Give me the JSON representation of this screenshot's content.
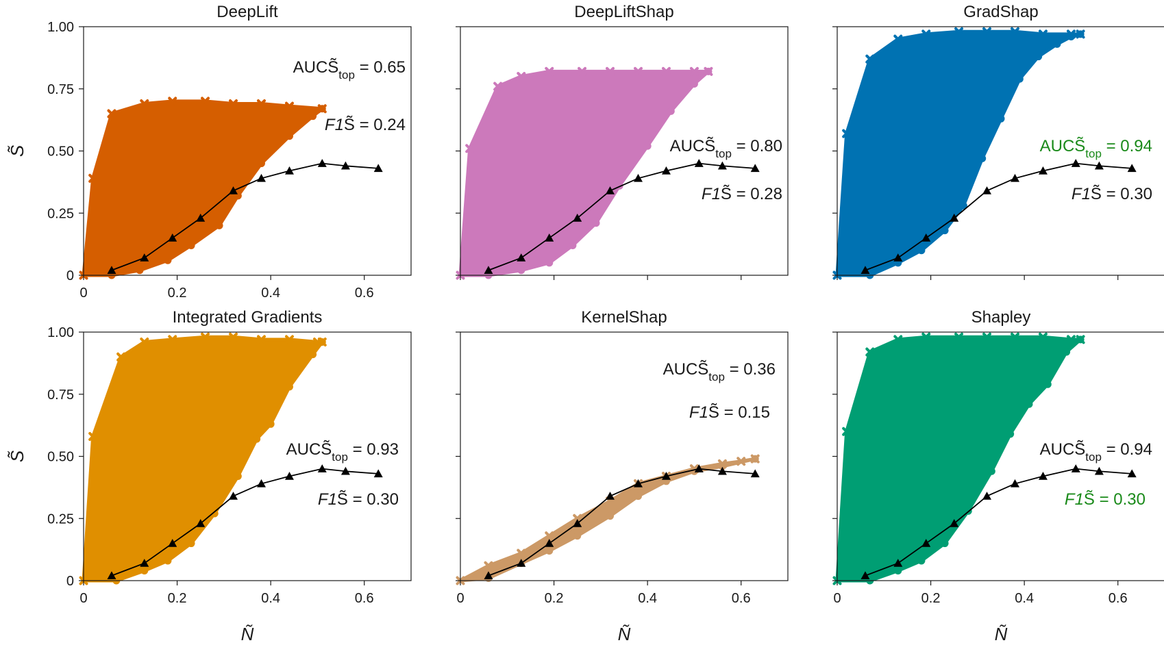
{
  "figure": {
    "xlabel": "Ñ",
    "ylabel": "S̃",
    "reference_color": "#000000"
  },
  "chart_data": [
    {
      "type": "area",
      "title": "DeepLift",
      "color": "#d55e00",
      "xlim": [
        0,
        0.7
      ],
      "ylim": [
        0,
        1.0
      ],
      "xticks": [
        "0",
        "0.2",
        "0.4",
        "0.6"
      ],
      "yticks": [
        "0",
        "0.25",
        "0.50",
        "0.75",
        "1.00"
      ],
      "series": [
        {
          "x": [
            0,
            0.02,
            0.06,
            0.13,
            0.19,
            0.26,
            0.32,
            0.38,
            0.44,
            0.51
          ],
          "y": [
            0,
            0.39,
            0.65,
            0.69,
            0.7,
            0.7,
            0.69,
            0.69,
            0.68,
            0.67
          ]
        },
        {
          "x": [
            0.06,
            0.12,
            0.18,
            0.23,
            0.29,
            0.33,
            0.38,
            0.44,
            0.49,
            0.51
          ],
          "y": [
            0,
            0.02,
            0.06,
            0.12,
            0.2,
            0.32,
            0.45,
            0.56,
            0.64,
            0.67
          ]
        },
        {
          "x": [
            0.06,
            0.13,
            0.19,
            0.25,
            0.32,
            0.38,
            0.44,
            0.51,
            0.56,
            0.63
          ],
          "y": [
            0.02,
            0.07,
            0.15,
            0.23,
            0.34,
            0.39,
            0.42,
            0.45,
            0.44,
            0.43
          ]
        }
      ],
      "annotations": [
        {
          "name": "AUC",
          "base": "AUCS̃",
          "sub": "top",
          "value": " = 0.65",
          "color": "#1a1a1a"
        },
        {
          "name": "F1",
          "pre": "F1",
          "base": "S̃",
          "value": " = 0.24",
          "color": "#1a1a1a"
        }
      ]
    },
    {
      "type": "area",
      "title": "DeepLiftShap",
      "color": "#cc79bb",
      "xlim": [
        0,
        0.7
      ],
      "ylim": [
        0,
        1.0
      ],
      "xticks": [],
      "yticks": [],
      "series": [
        {
          "x": [
            0,
            0.02,
            0.08,
            0.13,
            0.19,
            0.26,
            0.32,
            0.38,
            0.44,
            0.5,
            0.53
          ],
          "y": [
            0,
            0.51,
            0.76,
            0.8,
            0.82,
            0.82,
            0.82,
            0.82,
            0.82,
            0.82,
            0.82
          ]
        },
        {
          "x": [
            0.06,
            0.13,
            0.19,
            0.24,
            0.29,
            0.34,
            0.4,
            0.45,
            0.5,
            0.53
          ],
          "y": [
            0,
            0.02,
            0.05,
            0.12,
            0.21,
            0.36,
            0.52,
            0.66,
            0.77,
            0.82
          ]
        },
        {
          "x": [
            0.06,
            0.13,
            0.19,
            0.25,
            0.32,
            0.38,
            0.44,
            0.51,
            0.56,
            0.63
          ],
          "y": [
            0.02,
            0.07,
            0.15,
            0.23,
            0.34,
            0.39,
            0.42,
            0.45,
            0.44,
            0.43
          ]
        }
      ],
      "annotations": [
        {
          "name": "AUC",
          "base": "AUCS̃",
          "sub": "top",
          "value": " = 0.80",
          "color": "#1a1a1a"
        },
        {
          "name": "F1",
          "pre": "F1",
          "base": "S̃",
          "value": " = 0.28",
          "color": "#1a1a1a"
        }
      ]
    },
    {
      "type": "area",
      "title": "GradShap",
      "color": "#0072b2",
      "xlim": [
        0,
        0.7
      ],
      "ylim": [
        0,
        1.0
      ],
      "xticks": [],
      "yticks": [],
      "series": [
        {
          "x": [
            0,
            0.02,
            0.07,
            0.13,
            0.19,
            0.26,
            0.32,
            0.38,
            0.44,
            0.5,
            0.52
          ],
          "y": [
            0,
            0.57,
            0.87,
            0.95,
            0.97,
            0.98,
            0.98,
            0.98,
            0.97,
            0.97,
            0.97
          ]
        },
        {
          "x": [
            0.07,
            0.13,
            0.18,
            0.23,
            0.27,
            0.31,
            0.35,
            0.39,
            0.43,
            0.47,
            0.5,
            0.52
          ],
          "y": [
            0,
            0.05,
            0.1,
            0.18,
            0.28,
            0.47,
            0.63,
            0.79,
            0.88,
            0.93,
            0.96,
            0.97
          ]
        },
        {
          "x": [
            0.06,
            0.13,
            0.19,
            0.25,
            0.32,
            0.38,
            0.44,
            0.51,
            0.56,
            0.63
          ],
          "y": [
            0.02,
            0.07,
            0.15,
            0.23,
            0.34,
            0.39,
            0.42,
            0.45,
            0.44,
            0.43
          ]
        }
      ],
      "annotations": [
        {
          "name": "AUC",
          "base": "AUCS̃",
          "sub": "top",
          "value": " = 0.94",
          "color": "#1a8a1a"
        },
        {
          "name": "F1",
          "pre": "F1",
          "base": "S̃",
          "value": " = 0.30",
          "color": "#1a1a1a"
        }
      ]
    },
    {
      "type": "area",
      "title": "Integrated Gradients",
      "color": "#e08f00",
      "xlim": [
        0,
        0.7
      ],
      "ylim": [
        0,
        1.0
      ],
      "xticks": [
        "0",
        "0.2",
        "0.4",
        "0.6"
      ],
      "yticks": [
        "0",
        "0.25",
        "0.50",
        "0.75",
        "1.00"
      ],
      "series": [
        {
          "x": [
            0,
            0.02,
            0.08,
            0.13,
            0.19,
            0.26,
            0.32,
            0.38,
            0.44,
            0.5,
            0.51
          ],
          "y": [
            0,
            0.58,
            0.9,
            0.96,
            0.97,
            0.98,
            0.98,
            0.97,
            0.97,
            0.96,
            0.96
          ]
        },
        {
          "x": [
            0.07,
            0.13,
            0.18,
            0.23,
            0.28,
            0.33,
            0.37,
            0.4,
            0.44,
            0.49,
            0.51
          ],
          "y": [
            0,
            0.04,
            0.08,
            0.15,
            0.27,
            0.42,
            0.57,
            0.63,
            0.78,
            0.91,
            0.96
          ]
        },
        {
          "x": [
            0.06,
            0.13,
            0.19,
            0.25,
            0.32,
            0.38,
            0.44,
            0.51,
            0.56,
            0.63
          ],
          "y": [
            0.02,
            0.07,
            0.15,
            0.23,
            0.34,
            0.39,
            0.42,
            0.45,
            0.44,
            0.43
          ]
        }
      ],
      "annotations": [
        {
          "name": "AUC",
          "base": "AUCS̃",
          "sub": "top",
          "value": " = 0.93",
          "color": "#1a1a1a"
        },
        {
          "name": "F1",
          "pre": "F1",
          "base": "S̃",
          "value": " = 0.30",
          "color": "#1a1a1a"
        }
      ]
    },
    {
      "type": "area",
      "title": "KernelShap",
      "color": "#cc9966",
      "xlim": [
        0,
        0.7
      ],
      "ylim": [
        0,
        1.0
      ],
      "xticks": [
        "0",
        "0.2",
        "0.4",
        "0.6"
      ],
      "yticks": [],
      "series": [
        {
          "x": [
            0,
            0.06,
            0.13,
            0.19,
            0.25,
            0.32,
            0.38,
            0.44,
            0.5,
            0.56,
            0.6,
            0.63
          ],
          "y": [
            0,
            0.06,
            0.11,
            0.18,
            0.25,
            0.32,
            0.39,
            0.42,
            0.45,
            0.47,
            0.48,
            0.49
          ]
        },
        {
          "x": [
            0.06,
            0.13,
            0.19,
            0.25,
            0.32,
            0.38,
            0.44,
            0.5,
            0.56,
            0.63
          ],
          "y": [
            0.01,
            0.07,
            0.12,
            0.18,
            0.26,
            0.34,
            0.4,
            0.44,
            0.46,
            0.49
          ]
        },
        {
          "x": [
            0.06,
            0.13,
            0.19,
            0.25,
            0.32,
            0.38,
            0.44,
            0.51,
            0.56,
            0.63
          ],
          "y": [
            0.02,
            0.07,
            0.15,
            0.23,
            0.34,
            0.39,
            0.42,
            0.45,
            0.44,
            0.43
          ]
        }
      ],
      "annotations": [
        {
          "name": "AUC",
          "base": "AUCS̃",
          "sub": "top",
          "value": " = 0.36",
          "color": "#1a1a1a"
        },
        {
          "name": "F1",
          "pre": "F1",
          "base": "S̃",
          "value": " = 0.15",
          "color": "#1a1a1a"
        }
      ]
    },
    {
      "type": "area",
      "title": "Shapley",
      "color": "#009e73",
      "xlim": [
        0,
        0.7
      ],
      "ylim": [
        0,
        1.0
      ],
      "xticks": [
        "0",
        "0.2",
        "0.4",
        "0.6"
      ],
      "yticks": [],
      "series": [
        {
          "x": [
            0,
            0.02,
            0.07,
            0.13,
            0.19,
            0.26,
            0.32,
            0.38,
            0.44,
            0.5,
            0.52
          ],
          "y": [
            0,
            0.6,
            0.92,
            0.97,
            0.98,
            0.98,
            0.98,
            0.98,
            0.98,
            0.97,
            0.97
          ]
        },
        {
          "x": [
            0.07,
            0.13,
            0.18,
            0.23,
            0.28,
            0.33,
            0.37,
            0.41,
            0.45,
            0.49,
            0.52
          ],
          "y": [
            0,
            0.04,
            0.08,
            0.15,
            0.28,
            0.44,
            0.59,
            0.71,
            0.79,
            0.92,
            0.97
          ]
        },
        {
          "x": [
            0.06,
            0.13,
            0.19,
            0.25,
            0.32,
            0.38,
            0.44,
            0.51,
            0.56,
            0.63
          ],
          "y": [
            0.02,
            0.07,
            0.15,
            0.23,
            0.34,
            0.39,
            0.42,
            0.45,
            0.44,
            0.43
          ]
        }
      ],
      "annotations": [
        {
          "name": "AUC",
          "base": "AUCS̃",
          "sub": "top",
          "value": " = 0.94",
          "color": "#1a1a1a"
        },
        {
          "name": "F1",
          "pre": "F1",
          "base": "S̃",
          "value": " = 0.30",
          "color": "#1a8a1a"
        }
      ]
    }
  ]
}
